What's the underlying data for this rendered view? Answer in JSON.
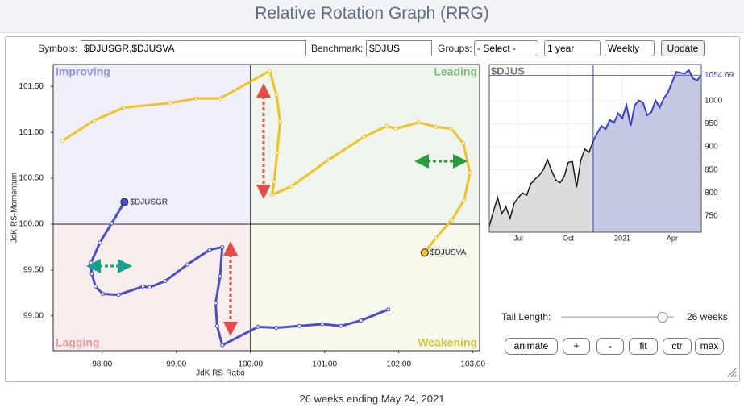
{
  "header": {
    "title": "Relative Rotation Graph (RRG)"
  },
  "controls": {
    "symbols_label": "Symbols:",
    "symbols": "$DJUSGR,$DJUSVA",
    "benchmark_label": "Benchmark:",
    "benchmark": "$DJUS",
    "groups_label": "Groups:",
    "groups": "- Select -",
    "period": "1 year",
    "frequency": "Weekly",
    "update": "Update"
  },
  "chart_data": [
    {
      "type": "line",
      "xlabel": "JdK RS-Ratio",
      "ylabel": "JdK RS-Momentum",
      "quadrants": {
        "top_left": "Improving",
        "top_right": "Leading",
        "bottom_left": "Lagging",
        "bottom_right": "Weakening"
      },
      "center": [
        100,
        100
      ],
      "xlim": [
        97.34,
        103.09
      ],
      "ylim": [
        98.62,
        101.74
      ],
      "xticks": [
        {
          "value": 98,
          "label": "98.00"
        },
        {
          "value": 99,
          "label": "99.00"
        },
        {
          "value": 100,
          "label": "100.00"
        },
        {
          "value": 101,
          "label": "101.00"
        },
        {
          "value": 102,
          "label": "102.00"
        },
        {
          "value": 103,
          "label": "103.00"
        }
      ],
      "yticks": [
        {
          "value": 99,
          "label": "99.00"
        },
        {
          "value": 99.5,
          "label": "99.50"
        },
        {
          "value": 100,
          "label": "100.00"
        },
        {
          "value": 100.5,
          "label": "100.50"
        },
        {
          "value": 101,
          "label": "101.00"
        },
        {
          "value": 101.5,
          "label": "101.50"
        }
      ],
      "series": [
        {
          "name": "$DJUSGR",
          "color": "#4a4fc4",
          "x": [
            101.86,
            101.49,
            101.22,
            100.97,
            100.66,
            100.35,
            100.1,
            99.62,
            99.55,
            99.53,
            99.59,
            99.62,
            99.45,
            99.15,
            98.85,
            98.64,
            98.55,
            98.22,
            98.01,
            97.91,
            97.86,
            97.85,
            97.97,
            98.13,
            98.3
          ],
          "values": [
            99.07,
            98.95,
            98.89,
            98.91,
            98.89,
            98.87,
            98.88,
            98.68,
            98.89,
            99.14,
            99.43,
            99.75,
            99.72,
            99.56,
            99.38,
            99.31,
            99.32,
            99.23,
            99.24,
            99.32,
            99.46,
            99.58,
            99.8,
            100.01,
            100.24
          ]
        },
        {
          "name": "$DJUSVA",
          "color": "#eec229",
          "x": [
            97.47,
            97.89,
            98.29,
            98.92,
            99.27,
            99.59,
            100.26,
            100.35,
            100.4,
            100.36,
            100.32,
            100.29,
            100.55,
            101.05,
            101.53,
            101.84,
            101.96,
            102.27,
            102.5,
            102.71,
            102.87,
            102.96,
            102.88,
            102.71,
            102.5,
            102.35
          ],
          "values": [
            100.91,
            101.13,
            101.27,
            101.32,
            101.37,
            101.37,
            101.67,
            101.41,
            101.12,
            100.78,
            100.46,
            100.32,
            100.41,
            100.7,
            100.95,
            101.07,
            101.04,
            101.11,
            101.06,
            101.04,
            100.88,
            100.56,
            100.26,
            100.04,
            99.85,
            99.69
          ]
        }
      ]
    },
    {
      "type": "area",
      "categories": [
        null,
        null,
        null,
        null,
        null,
        null,
        null,
        "Jul",
        null,
        null,
        null,
        null,
        null,
        null,
        null,
        null,
        null,
        null,
        null,
        "Oct",
        null,
        null,
        null,
        null,
        null,
        null,
        null,
        null,
        null,
        null,
        null,
        null,
        "2021",
        null,
        null,
        null,
        null,
        null,
        null,
        null,
        null,
        null,
        null,
        null,
        "Apr",
        null,
        null,
        null,
        null,
        null,
        null,
        null
      ],
      "ylim": [
        715,
        1078
      ],
      "yticks": [
        750,
        800,
        850,
        900,
        950,
        1000
      ],
      "series": [
        {
          "name": "$DJUS",
          "color": "#1a1a1a",
          "highlight_color": "#3a3fc8",
          "values": [
            728,
            760,
            790,
            755,
            770,
            745,
            778,
            790,
            800,
            795,
            820,
            830,
            838,
            850,
            872,
            848,
            828,
            822,
            835,
            866,
            868,
            812,
            870,
            895,
            888,
            912,
            930,
            945,
            938,
            958,
            952,
            972,
            962,
            990,
            945,
            990,
            1000,
            995,
            968,
            975,
            1000,
            985,
            1005,
            1018,
            1040,
            1062,
            1060,
            1058,
            1066,
            1048,
            1044,
            1054.69
          ]
        }
      ]
    }
  ],
  "tail": {
    "label": "Tail Length:",
    "weeks": 26,
    "value_label": "26 weeks"
  },
  "buttons": [
    "animate",
    "+",
    "-",
    "fit",
    "ctr",
    "max"
  ],
  "footer": "26 weeks ending May 24, 2021"
}
